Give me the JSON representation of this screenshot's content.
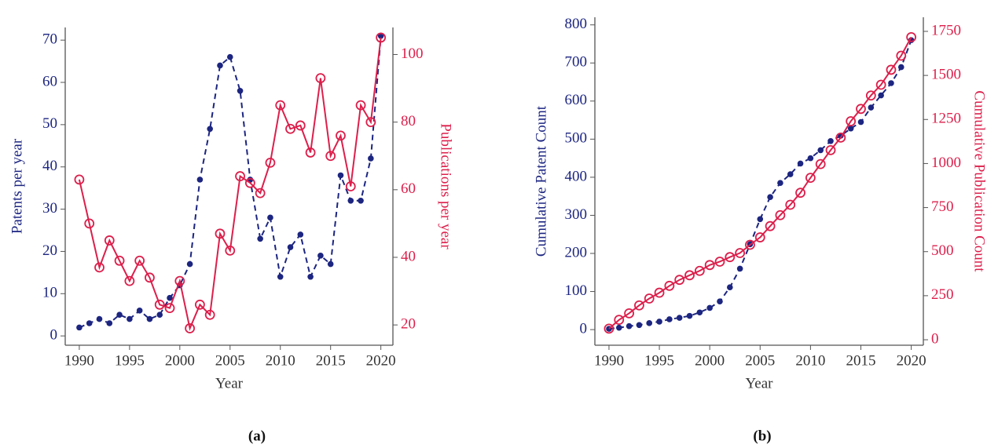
{
  "chart_data": [
    {
      "type": "line",
      "title": "(a)",
      "xlabel": "Year",
      "ylabel": "Patents per year",
      "y2label": "Publications per year",
      "x": [
        1990,
        1991,
        1992,
        1993,
        1994,
        1995,
        1996,
        1997,
        1998,
        1999,
        2000,
        2001,
        2002,
        2003,
        2004,
        2005,
        2006,
        2007,
        2008,
        2009,
        2010,
        2011,
        2012,
        2013,
        2014,
        2015,
        2016,
        2017,
        2018,
        2019,
        2020
      ],
      "xlim": [
        1988.6,
        2021.2
      ],
      "xticks": [
        1990,
        1995,
        2000,
        2005,
        2010,
        2015,
        2020
      ],
      "ylim": [
        -2.2,
        73
      ],
      "yticks": [
        0,
        10,
        20,
        30,
        40,
        50,
        60,
        70
      ],
      "y2lim": [
        14,
        108
      ],
      "y2ticks": [
        20,
        40,
        60,
        80,
        100
      ],
      "series": [
        {
          "name": "Patents per year",
          "color": "#1c2580",
          "dashed": true,
          "marker": "filled",
          "values": [
            2,
            3,
            4,
            3,
            5,
            4,
            6,
            4,
            5,
            9,
            12,
            17,
            37,
            49,
            64,
            66,
            58,
            37,
            23,
            28,
            14,
            21,
            24,
            14,
            19,
            17,
            38,
            32,
            32,
            42,
            71
          ]
        },
        {
          "name": "Publications per year",
          "color": "#dc1f4b",
          "dashed": false,
          "marker": "open",
          "axis": "y2",
          "values": [
            63,
            50,
            37,
            45,
            39,
            33,
            39,
            34,
            26,
            25,
            33,
            19,
            26,
            23,
            47,
            42,
            64,
            62,
            59,
            68,
            85,
            78,
            79,
            71,
            93,
            70,
            76,
            61,
            85,
            80,
            105
          ]
        }
      ]
    },
    {
      "type": "line",
      "title": "(b)",
      "xlabel": "Year",
      "ylabel": "Cumulative Patent Count",
      "y2label": "Cumulative Publication Count",
      "x": [
        1990,
        1991,
        1992,
        1993,
        1994,
        1995,
        1996,
        1997,
        1998,
        1999,
        2000,
        2001,
        2002,
        2003,
        2004,
        2005,
        2006,
        2007,
        2008,
        2009,
        2010,
        2011,
        2012,
        2013,
        2014,
        2015,
        2016,
        2017,
        2018,
        2019,
        2020
      ],
      "xlim": [
        1988.6,
        2021.2
      ],
      "xticks": [
        1990,
        1995,
        2000,
        2005,
        2010,
        2015,
        2020
      ],
      "ylim": [
        -41,
        820
      ],
      "yticks": [
        0,
        100,
        200,
        300,
        400,
        500,
        600,
        700,
        800
      ],
      "y2lim": [
        -31,
        1830
      ],
      "y2ticks": [
        0,
        250,
        500,
        750,
        1000,
        1250,
        1500,
        1750
      ],
      "series": [
        {
          "name": "Cumulative Patent Count",
          "color": "#1c2580",
          "dashed": true,
          "marker": "filled",
          "values": [
            2,
            5,
            9,
            12,
            17,
            21,
            27,
            31,
            36,
            45,
            57,
            74,
            111,
            160,
            224,
            290,
            348,
            385,
            408,
            436,
            450,
            471,
            495,
            509,
            528,
            545,
            583,
            615,
            647,
            689,
            760
          ]
        },
        {
          "name": "Cumulative Publication Count",
          "color": "#dc1f4b",
          "dashed": false,
          "marker": "open",
          "axis": "y2",
          "values": [
            63,
            113,
            150,
            195,
            234,
            267,
            306,
            340,
            366,
            391,
            424,
            443,
            469,
            492,
            539,
            581,
            645,
            707,
            766,
            834,
            919,
            997,
            1076,
            1147,
            1240,
            1310,
            1386,
            1447,
            1532,
            1612,
            1717
          ]
        }
      ]
    }
  ]
}
